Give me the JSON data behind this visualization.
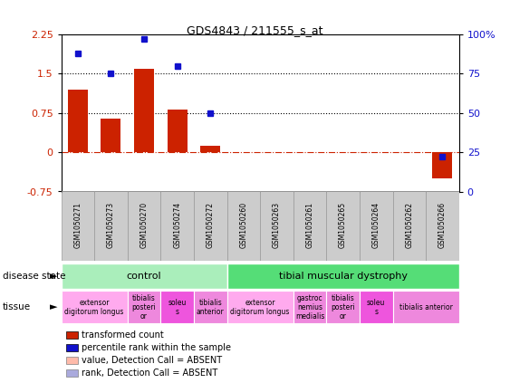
{
  "title": "GDS4843 / 211555_s_at",
  "samples": [
    "GSM1050271",
    "GSM1050273",
    "GSM1050270",
    "GSM1050274",
    "GSM1050272",
    "GSM1050260",
    "GSM1050263",
    "GSM1050261",
    "GSM1050265",
    "GSM1050264",
    "GSM1050262",
    "GSM1050266"
  ],
  "bar_values": [
    1.2,
    0.65,
    1.6,
    0.82,
    0.13,
    0.0,
    0.0,
    0.0,
    0.0,
    0.0,
    0.0,
    -0.5
  ],
  "dot_values": [
    88,
    75,
    97,
    80,
    50,
    null,
    null,
    null,
    null,
    null,
    null,
    22
  ],
  "dot_absent": [
    false,
    false,
    false,
    false,
    false,
    true,
    true,
    true,
    true,
    true,
    true,
    false
  ],
  "bar_color": "#CC2200",
  "dot_color": "#1111CC",
  "bar_color_absent": "#FFBBAA",
  "dot_color_absent": "#AAAADD",
  "ylim_left": [
    -0.75,
    2.25
  ],
  "ylim_right": [
    0,
    100
  ],
  "yticks_left": [
    -0.75,
    0,
    0.75,
    1.5,
    2.25
  ],
  "yticks_right": [
    0,
    25,
    50,
    75,
    100
  ],
  "hlines": [
    0.75,
    1.5
  ],
  "hline_color": "black",
  "zero_line_color": "#CC2200",
  "disease_state_groups": [
    {
      "label": "control",
      "start": 0,
      "end": 5,
      "color": "#AAEEBB"
    },
    {
      "label": "tibial muscular dystrophy",
      "start": 5,
      "end": 12,
      "color": "#55DD77"
    }
  ],
  "tissue_groups": [
    {
      "label": "extensor\ndigitorum longus",
      "start": 0,
      "end": 2,
      "color": "#FFAAEE"
    },
    {
      "label": "tibialis\nposteri\nor",
      "start": 2,
      "end": 3,
      "color": "#EE88DD"
    },
    {
      "label": "soleu\ns",
      "start": 3,
      "end": 4,
      "color": "#EE55DD"
    },
    {
      "label": "tibialis\nanterior",
      "start": 4,
      "end": 5,
      "color": "#EE88DD"
    },
    {
      "label": "extensor\ndigitorum longus",
      "start": 5,
      "end": 7,
      "color": "#FFAAEE"
    },
    {
      "label": "gastroc\nnemius\nmedialis",
      "start": 7,
      "end": 8,
      "color": "#EE88DD"
    },
    {
      "label": "tibialis\nposteri\nor",
      "start": 8,
      "end": 9,
      "color": "#EE88DD"
    },
    {
      "label": "soleu\ns",
      "start": 9,
      "end": 10,
      "color": "#EE55DD"
    },
    {
      "label": "tibialis anterior",
      "start": 10,
      "end": 12,
      "color": "#EE88DD"
    }
  ],
  "legend_items": [
    {
      "color": "#CC2200",
      "label": "transformed count"
    },
    {
      "color": "#1111CC",
      "label": "percentile rank within the sample"
    },
    {
      "color": "#FFBBAA",
      "label": "value, Detection Call = ABSENT"
    },
    {
      "color": "#AAAADD",
      "label": "rank, Detection Call = ABSENT"
    }
  ],
  "sample_box_color": "#CCCCCC",
  "sample_box_edgecolor": "#999999"
}
